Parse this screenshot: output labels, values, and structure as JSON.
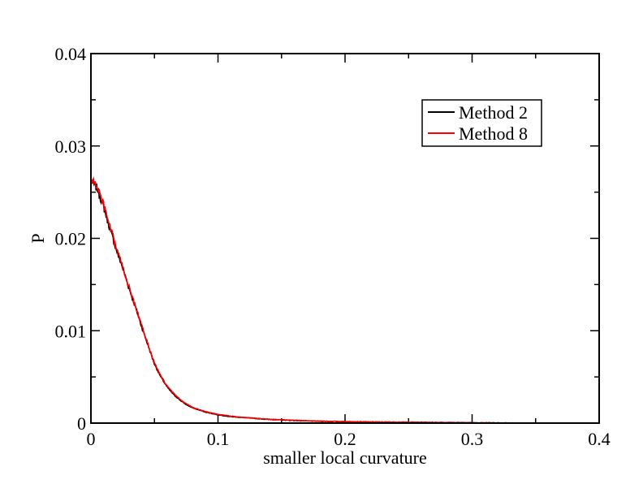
{
  "chart_data": {
    "type": "line",
    "title": "",
    "xlabel": "smaller local curvature",
    "ylabel": "P",
    "xlim": [
      0,
      0.4
    ],
    "ylim": [
      0,
      0.04
    ],
    "x_major_ticks": [
      0,
      0.1,
      0.2,
      0.3,
      0.4
    ],
    "x_tick_labels": [
      "0",
      "0.1",
      "0.2",
      "0.3",
      "0.4"
    ],
    "x_minor_step": 0.05,
    "y_major_ticks": [
      0,
      0.01,
      0.02,
      0.03,
      0.04
    ],
    "y_tick_labels": [
      "0",
      "0.01",
      "0.02",
      "0.03",
      "0.04"
    ],
    "y_minor_step": 0.005,
    "grid": false,
    "legend_position": "top-right",
    "series": [
      {
        "name": "Method 2",
        "color": "#000000",
        "x": [
          0,
          0.005,
          0.01,
          0.015,
          0.02,
          0.025,
          0.03,
          0.035,
          0.04,
          0.045,
          0.05,
          0.055,
          0.06,
          0.065,
          0.07,
          0.075,
          0.08,
          0.09,
          0.1,
          0.11,
          0.12,
          0.14,
          0.16,
          0.18,
          0.2,
          0.22,
          0.25,
          0.28,
          0.3,
          0.32,
          0.335
        ],
        "y": [
          0.0262,
          0.0254,
          0.0234,
          0.021,
          0.0188,
          0.0168,
          0.0146,
          0.0126,
          0.0104,
          0.0084,
          0.0064,
          0.005,
          0.0039,
          0.0031,
          0.0025,
          0.002,
          0.00165,
          0.0012,
          0.0009,
          0.0007,
          0.0006,
          0.0004,
          0.00028,
          0.0002,
          0.00016,
          0.00012,
          9e-05,
          6e-05,
          4e-05,
          2e-05,
          1e-05
        ]
      },
      {
        "name": "Method 8",
        "color": "#ff0000",
        "x": [
          0,
          0.005,
          0.01,
          0.015,
          0.02,
          0.025,
          0.03,
          0.035,
          0.04,
          0.045,
          0.05,
          0.055,
          0.06,
          0.065,
          0.07,
          0.075,
          0.08,
          0.09,
          0.1,
          0.11,
          0.12,
          0.14,
          0.16,
          0.18,
          0.2,
          0.22,
          0.25,
          0.28,
          0.3,
          0.32
        ],
        "y": [
          0.0264,
          0.0256,
          0.0236,
          0.0212,
          0.019,
          0.0169,
          0.0147,
          0.0127,
          0.0105,
          0.0085,
          0.0065,
          0.0051,
          0.004,
          0.0032,
          0.0026,
          0.0021,
          0.0017,
          0.00125,
          0.00095,
          0.00075,
          0.00062,
          0.00042,
          0.0003,
          0.00021,
          0.00016,
          0.00012,
          9e-05,
          6e-05,
          4e-05,
          2e-05
        ]
      }
    ]
  }
}
